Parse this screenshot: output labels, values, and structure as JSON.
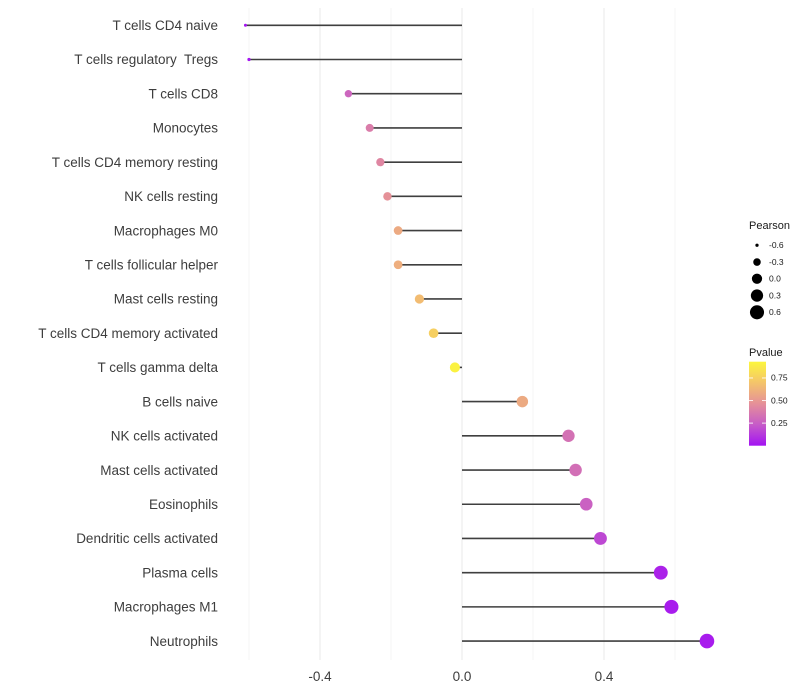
{
  "chart_data": {
    "type": "lollipop",
    "title": "",
    "xlabel": "",
    "ylabel": "",
    "categories": [
      "T cells CD4 naive",
      "T cells regulatory  Tregs",
      "T cells CD8",
      "Monocytes",
      "T cells CD4 memory resting",
      "NK cells resting",
      "Macrophages M0",
      "T cells follicular helper",
      "Mast cells resting",
      "T cells CD4 memory activated",
      "T cells gamma delta",
      "B cells naive",
      "NK cells activated",
      "Mast cells activated",
      "Eosinophils",
      "Dendritic cells activated",
      "Plasma cells",
      "Macrophages M1",
      "Neutrophils"
    ],
    "series": [
      {
        "name": "Pearson",
        "values": [
          -0.61,
          -0.6,
          -0.32,
          -0.26,
          -0.23,
          -0.21,
          -0.18,
          -0.18,
          -0.12,
          -0.08,
          -0.02,
          0.17,
          0.3,
          0.32,
          0.35,
          0.39,
          0.56,
          0.59,
          0.69
        ]
      },
      {
        "name": "Pvalue",
        "values": [
          0.004,
          0.01,
          0.28,
          0.38,
          0.42,
          0.47,
          0.58,
          0.6,
          0.66,
          0.75,
          0.91,
          0.58,
          0.33,
          0.32,
          0.26,
          0.17,
          0.05,
          0.03,
          0.03
        ]
      }
    ],
    "x_axis": {
      "tick_labels": [
        "-0.4",
        "0.0",
        "0.4"
      ],
      "tick_values": [
        -0.4,
        0.0,
        0.4
      ],
      "minor_tick_values": [
        -0.6,
        -0.2,
        0.2,
        0.6
      ],
      "range": [
        -0.67,
        0.77
      ]
    },
    "grid": "vertical major and minor gridlines only, very light gray, white panel",
    "legend_position": "right",
    "size_legend": {
      "title": "Pearson",
      "entries": [
        {
          "value": -0.6,
          "label": "-0.6"
        },
        {
          "value": -0.3,
          "label": "-0.3"
        },
        {
          "value": 0.0,
          "label": "0.0"
        },
        {
          "value": 0.3,
          "label": "0.3"
        },
        {
          "value": 0.6,
          "label": "0.6"
        }
      ],
      "dot_color": "#000000"
    },
    "color_legend": {
      "title": "Pvalue",
      "ticks": [
        {
          "value": 0.75,
          "label": "0.75"
        },
        {
          "value": 0.5,
          "label": "0.50"
        },
        {
          "value": 0.25,
          "label": "0.25"
        }
      ],
      "domain": [
        0.0,
        0.93
      ],
      "gradient_stops": [
        {
          "t": 0.0,
          "color": "#A313F2"
        },
        {
          "t": 0.25,
          "color": "#C65BC8"
        },
        {
          "t": 0.5,
          "color": "#E59099"
        },
        {
          "t": 0.75,
          "color": "#F4C46B"
        },
        {
          "t": 1.0,
          "color": "#FCF63D"
        }
      ]
    },
    "styles": {
      "segment_color": "#3F3F3F",
      "axis_text_color": "#3D3D3D",
      "legend_text_color": "#1A1A1A",
      "grid_major_color": "#E8E8E8",
      "grid_minor_color": "#F4F4F4",
      "background": "#FFFFFF"
    }
  }
}
